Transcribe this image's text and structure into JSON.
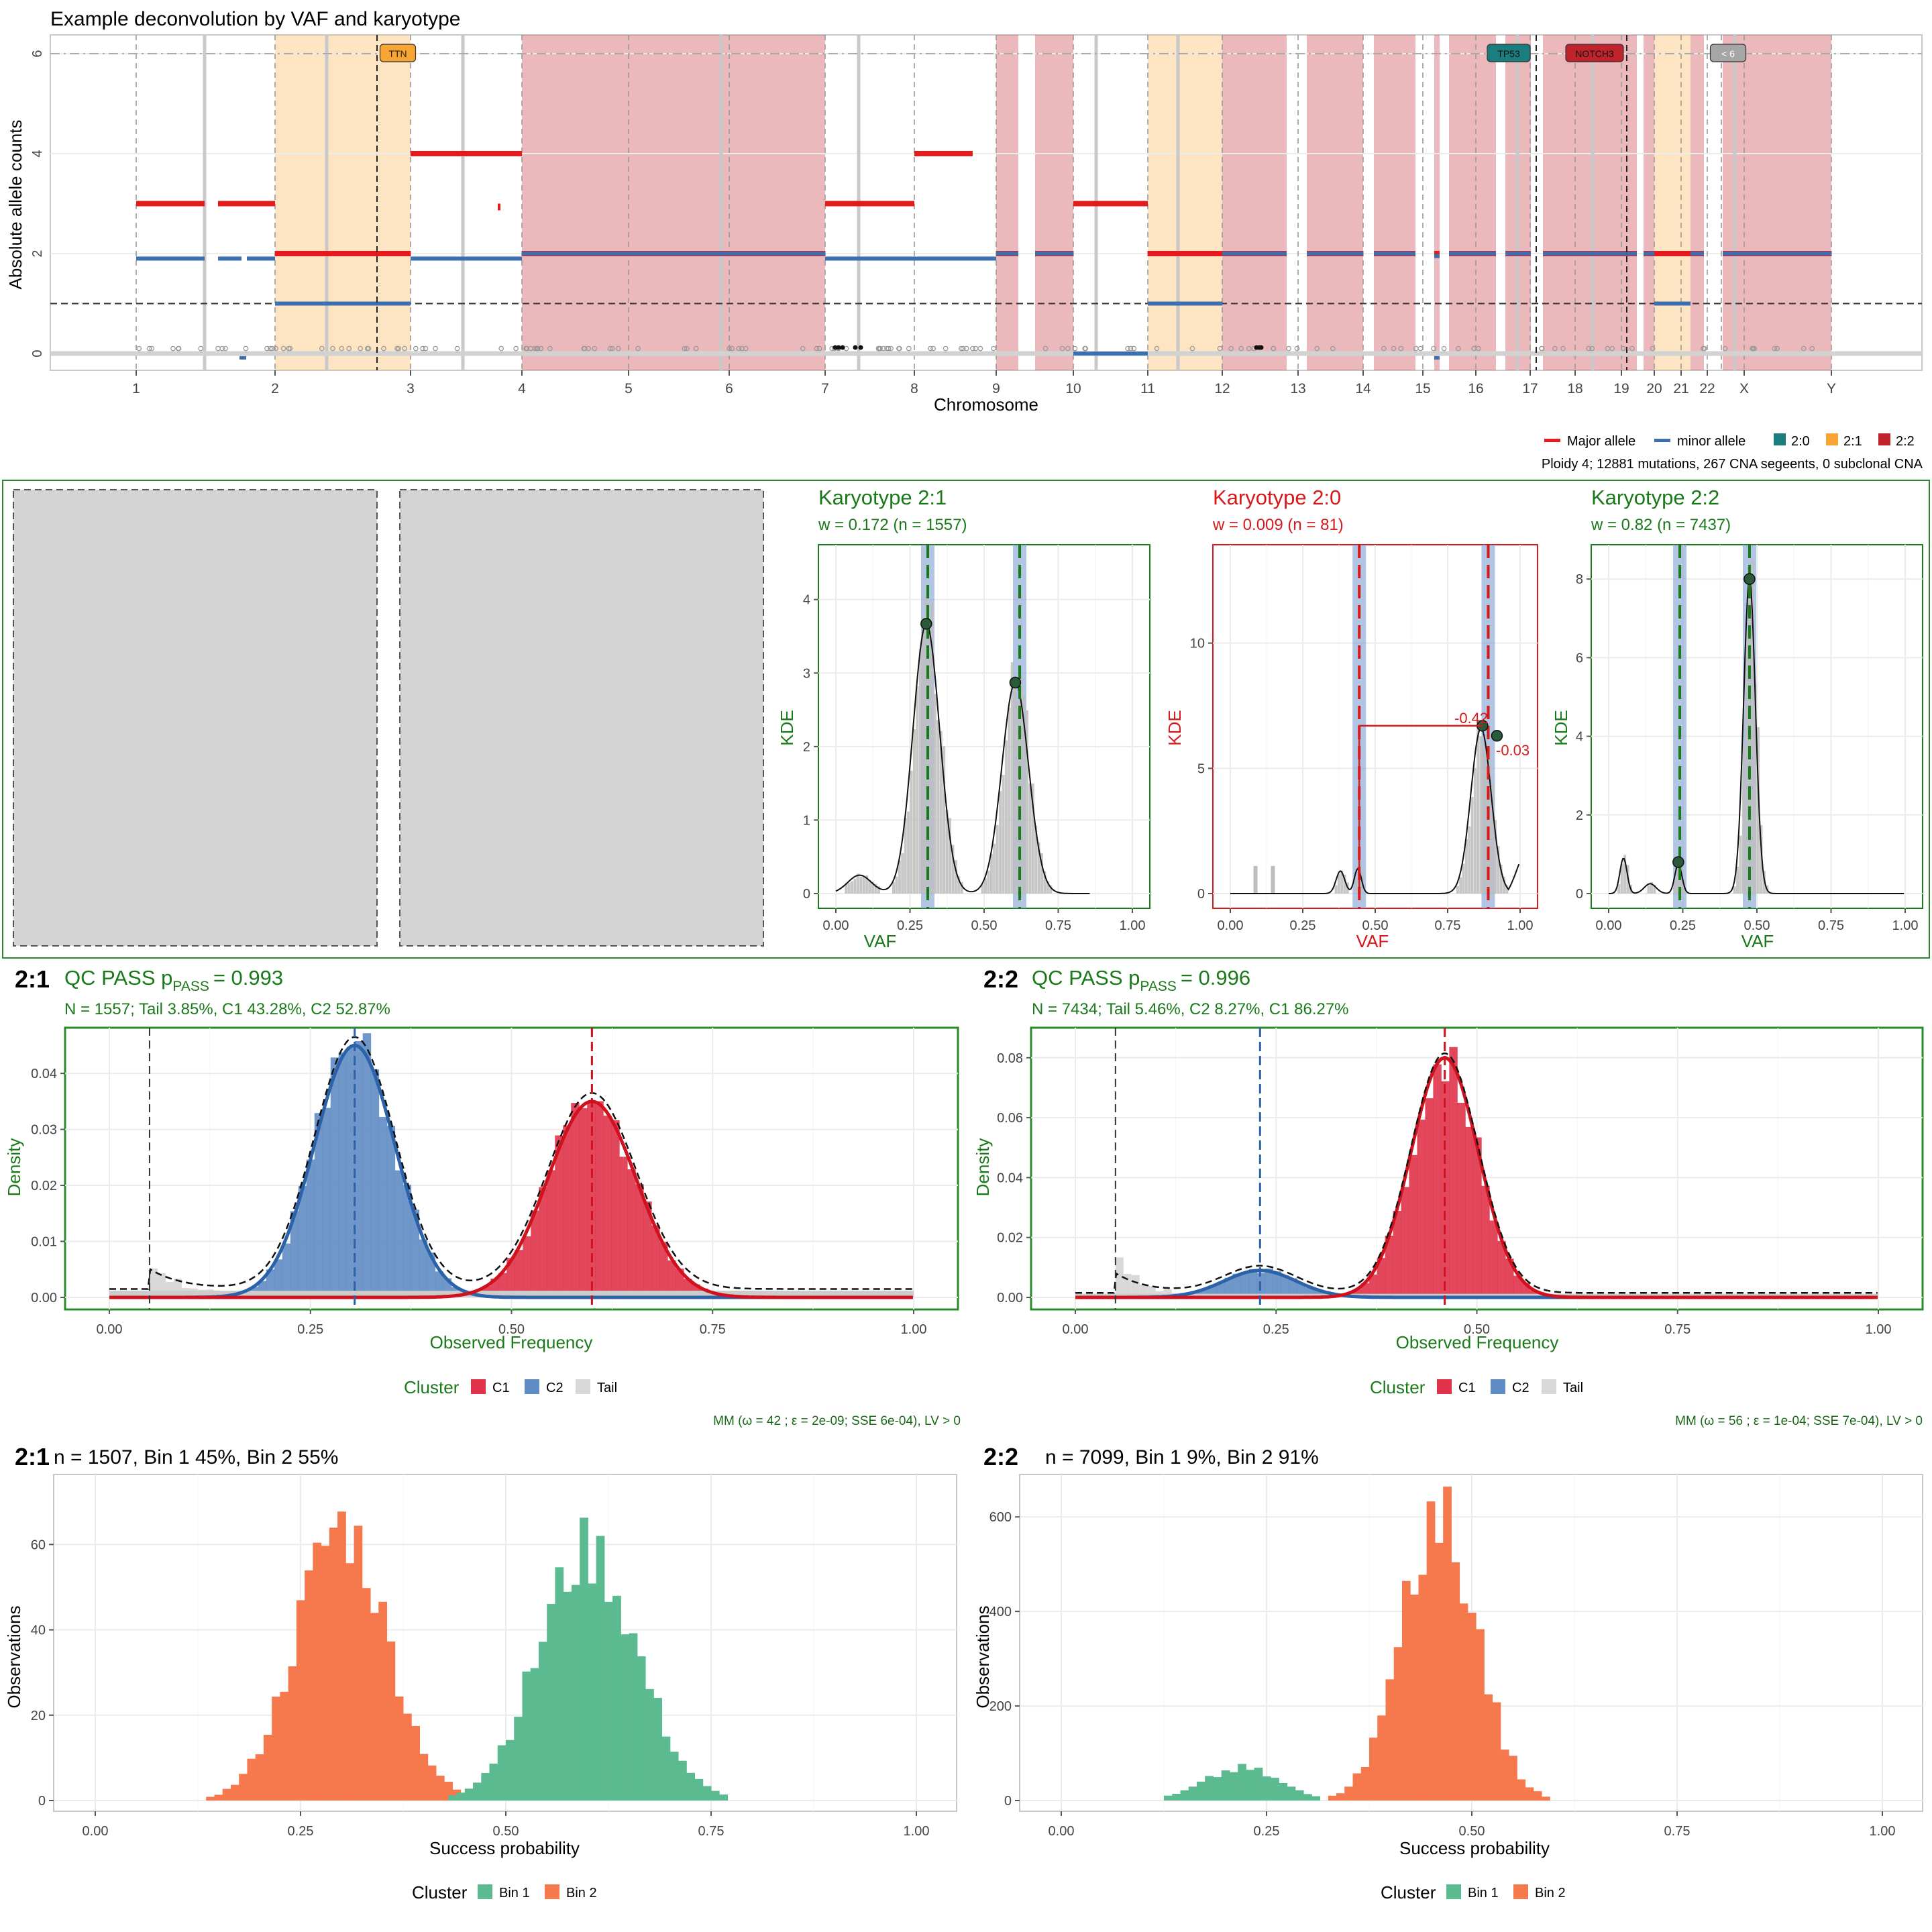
{
  "page": {
    "title": "Example deconvolution by VAF and karyotype"
  },
  "colors": {
    "major": "#e41a1c",
    "minor": "#3b6fb0",
    "k20": "#1b7d7d",
    "k21": "#f7a535",
    "k22": "#c0232c",
    "green": "#1a7a1a",
    "red": "#d7191c",
    "bin1": "#5bba90",
    "bin2": "#f6784d",
    "c1": "#e0334a",
    "c2": "#5f8cc4",
    "tail": "#d9d9d9"
  },
  "chart_data": [
    {
      "id": "genome",
      "type": "scatter",
      "title": "Example deconvolution by VAF and karyotype",
      "xlabel": "Chromosome",
      "ylabel": "Absolute allele counts",
      "ylim": [
        0,
        6
      ],
      "yticks": [
        "0",
        "2",
        "4",
        "6"
      ],
      "chromosomes": [
        "1",
        "2",
        "3",
        "4",
        "5",
        "6",
        "7",
        "8",
        "9",
        "10",
        "11",
        "12",
        "13",
        "14",
        "15",
        "16",
        "17",
        "18",
        "19",
        "20",
        "21",
        "22",
        "X",
        "Y"
      ],
      "drivers": [
        {
          "label": "TTN",
          "chrom": "2",
          "karyotype": "2:1"
        },
        {
          "label": "TP53",
          "chrom": "17",
          "karyotype": "2:0"
        },
        {
          "label": "NOTCH3",
          "chrom": "19",
          "karyotype": "2:2"
        },
        {
          "label": "< 6",
          "chrom": "22"
        }
      ],
      "ploidy_line": 1,
      "segments": [
        {
          "chrom": "1",
          "major": 3,
          "minor": 1.9
        },
        {
          "chrom": "2",
          "major": 2,
          "minor": 1,
          "karyotype": "2:1"
        },
        {
          "chrom": "3",
          "major": 4,
          "minor": 1.9
        },
        {
          "chrom": "4-6",
          "major": 2,
          "minor": 2,
          "karyotype": "2:2"
        },
        {
          "chrom": "7",
          "major": 3,
          "minor": 1.9
        },
        {
          "chrom": "8",
          "major": 4,
          "minor": 1.9
        },
        {
          "chrom": "9",
          "major": 2,
          "minor": 2,
          "karyotype": "2:2"
        },
        {
          "chrom": "10",
          "major": 3,
          "minor": 0
        },
        {
          "chrom": "11",
          "major": 2,
          "minor": 1,
          "karyotype": "2:1"
        },
        {
          "chrom": "12-Y",
          "major": 2,
          "minor": 2,
          "karyotype": "2:2"
        }
      ],
      "legend": {
        "allele": [
          "Major allele",
          "minor allele"
        ],
        "karyotype": [
          "2:0",
          "2:1",
          "2:2"
        ]
      },
      "caption": "Ploidy 4; 12881 mutations, 267 CNA segeents, 0 subclonal CNA"
    },
    {
      "id": "kde-21",
      "type": "line",
      "title": "Karyotype 2:1",
      "subtitle": "w = 0.172 (n = 1557)",
      "xlabel": "VAF",
      "ylabel": "KDE",
      "xlim": [
        0,
        1
      ],
      "ylim": [
        0,
        4.6
      ],
      "xticks": [
        "0.00",
        "0.25",
        "0.50",
        "0.75",
        "1.00"
      ],
      "yticks": [
        "0",
        "1",
        "2",
        "3",
        "4"
      ],
      "peaks_vaf": [
        0.305,
        0.605
      ],
      "peaks_kde": [
        3.67,
        2.87
      ],
      "expected_vaf": [
        0.31,
        0.62
      ]
    },
    {
      "id": "kde-20",
      "type": "line",
      "title": "Karyotype 2:0",
      "subtitle": "w = 0.009 (n = 81)",
      "xlabel": "VAF",
      "ylabel": "KDE",
      "xlim": [
        0,
        1
      ],
      "ylim": [
        0,
        13.5
      ],
      "xticks": [
        "0.00",
        "0.25",
        "0.50",
        "0.75",
        "1.00"
      ],
      "yticks": [
        "0",
        "5",
        "10"
      ],
      "peaks_vaf": [
        0.87,
        0.92
      ],
      "peaks_kde": [
        6.7,
        6.3
      ],
      "expected_vaf": [
        0.445,
        0.89
      ],
      "annotations": [
        "-0.42",
        "-0.03"
      ]
    },
    {
      "id": "kde-22",
      "type": "line",
      "title": "Karyotype 2:2",
      "subtitle": "w = 0.82 (n = 7437)",
      "xlabel": "VAF",
      "ylabel": "KDE",
      "xlim": [
        0,
        1
      ],
      "ylim": [
        0,
        8.6
      ],
      "xticks": [
        "0.00",
        "0.25",
        "0.50",
        "0.75",
        "1.00"
      ],
      "yticks": [
        "0",
        "2",
        "4",
        "6",
        "8"
      ],
      "peaks_vaf": [
        0.475,
        0.235
      ],
      "peaks_kde": [
        8.0,
        0.8
      ],
      "expected_vaf": [
        0.24,
        0.475
      ]
    },
    {
      "id": "mm-21",
      "type": "area",
      "tag": "2:1",
      "title": "QC  PASS p",
      "title_sub": "PASS",
      "title_val": "= 0.993",
      "subtitle": "N = 1557; Tail 3.85%, C1 43.28%, C2 52.87%",
      "xlabel": "Observed Frequency",
      "ylabel": "Density",
      "xlim": [
        0,
        1
      ],
      "ylim": [
        0,
        0.046
      ],
      "xticks": [
        "0.00",
        "0.25",
        "0.50",
        "0.75",
        "1.00"
      ],
      "yticks": [
        "0.00",
        "0.01",
        "0.02",
        "0.03",
        "0.04"
      ],
      "series": [
        {
          "name": "C1",
          "mean": 0.6,
          "sd": 0.055,
          "peak": 0.035
        },
        {
          "name": "C2",
          "mean": 0.305,
          "sd": 0.05,
          "peak": 0.045
        },
        {
          "name": "Tail",
          "cut": 0.05,
          "peak": 0.006
        }
      ],
      "legend_title": "Cluster",
      "legend": [
        "C1",
        "C2",
        "Tail"
      ],
      "caption": "MM (ω = 42 ; ε = 2e-09; SSE 6e-04), LV > 0"
    },
    {
      "id": "mm-22",
      "type": "area",
      "tag": "2:2",
      "title": "QC  PASS p",
      "title_sub": "PASS",
      "title_val": "= 0.996",
      "subtitle": "N = 7434; Tail 5.46%, C2 8.27%, C1 86.27%",
      "xlabel": "Observed Frequency",
      "ylabel": "Density",
      "xlim": [
        0,
        1
      ],
      "ylim": [
        0,
        0.086
      ],
      "xticks": [
        "0.00",
        "0.25",
        "0.50",
        "0.75",
        "1.00"
      ],
      "yticks": [
        "0.00",
        "0.02",
        "0.04",
        "0.06",
        "0.08"
      ],
      "series": [
        {
          "name": "C1",
          "mean": 0.46,
          "sd": 0.042,
          "peak": 0.08
        },
        {
          "name": "C2",
          "mean": 0.23,
          "sd": 0.045,
          "peak": 0.009
        },
        {
          "name": "Tail",
          "cut": 0.05,
          "peak": 0.011
        }
      ],
      "legend_title": "Cluster",
      "legend": [
        "C1",
        "C2",
        "Tail"
      ],
      "caption": "MM (ω = 56 ; ε = 1e-04; SSE 7e-04), LV > 0"
    },
    {
      "id": "bin-21",
      "type": "bar",
      "tag": "2:1",
      "title": "n = 1507, Bin 1 45%, Bin 2 55%",
      "xlabel": "Success probability",
      "ylabel": "Observations",
      "xlim": [
        0,
        1
      ],
      "ylim": [
        0,
        72
      ],
      "xticks": [
        "0.00",
        "0.25",
        "0.50",
        "0.75",
        "1.00"
      ],
      "yticks": [
        "0",
        "20",
        "40",
        "60"
      ],
      "series": [
        {
          "name": "Bin 2",
          "mean": 0.3,
          "sd": 0.055,
          "peak": 64
        },
        {
          "name": "Bin 1",
          "mean": 0.6,
          "sd": 0.06,
          "peak": 58
        }
      ],
      "legend_title": "Cluster",
      "legend": [
        "Bin 1",
        "Bin 2"
      ]
    },
    {
      "id": "bin-22",
      "type": "bar",
      "tag": "2:2",
      "title": "n = 7099, Bin 1 9%, Bin 2 91%",
      "xlabel": "Success probability",
      "ylabel": "Observations",
      "xlim": [
        0,
        1
      ],
      "ylim": [
        0,
        650
      ],
      "xticks": [
        "0.00",
        "0.25",
        "0.50",
        "0.75",
        "1.00"
      ],
      "yticks": [
        "0",
        "200",
        "400",
        "600"
      ],
      "series": [
        {
          "name": "Bin 2",
          "mean": 0.46,
          "sd": 0.045,
          "peak": 610
        },
        {
          "name": "Bin 1",
          "mean": 0.22,
          "sd": 0.045,
          "peak": 70
        }
      ],
      "legend_title": "Cluster",
      "legend": [
        "Bin 1",
        "Bin 2"
      ]
    }
  ]
}
